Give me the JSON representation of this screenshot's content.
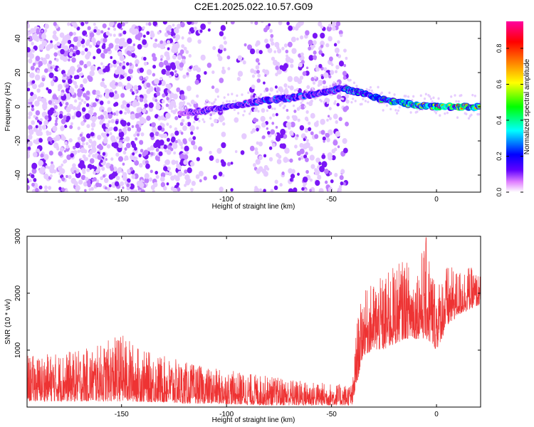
{
  "title": "C2E1.2025.022.10.57.G09",
  "chart_data": [
    {
      "type": "heatmap",
      "name": "spectrogram",
      "xlabel": "Height of straight line (km)",
      "ylabel": "Frequency (Hz)",
      "xlim": [
        -195,
        21
      ],
      "ylim": [
        -50,
        50
      ],
      "xticks": [
        -150,
        -100,
        -50,
        0
      ],
      "yticks": [
        -40,
        -20,
        0,
        20,
        40
      ],
      "colorbar": {
        "label": "Normalized spectral amplitude",
        "range": [
          0,
          0.95
        ],
        "ticks": [
          "0.0",
          "0.2",
          "0.4",
          "0.6",
          "0.8"
        ],
        "colormap": [
          "#ffffff",
          "#ff00ff",
          "#6000ff",
          "#0000ff",
          "#00ffff",
          "#00ff00",
          "#ffff00",
          "#ff8000",
          "#ff0000",
          "#ff00a0"
        ]
      },
      "noise_region": {
        "x": [
          -195,
          -42
        ],
        "fmin": -50,
        "fmax": 50
      },
      "noise_gaps_km": [
        [
          -112,
          -104
        ],
        [
          -101,
          -88
        ]
      ],
      "signal_trace": {
        "x": [
          -122,
          -110,
          -100,
          -90,
          -80,
          -70,
          -60,
          -50,
          -45,
          -40,
          -35,
          -30,
          -25,
          -20,
          -10,
          0,
          10,
          21
        ],
        "freq_hz": [
          -4,
          -2,
          0,
          2,
          4,
          5,
          7,
          9,
          11,
          9,
          8,
          6,
          4,
          3,
          1,
          0,
          0,
          0
        ],
        "peak_amplitude": [
          0.15,
          0.25,
          0.3,
          0.3,
          0.35,
          0.35,
          0.3,
          0.35,
          0.4,
          0.45,
          0.4,
          0.45,
          0.55,
          0.6,
          0.7,
          0.8,
          0.9,
          0.7
        ]
      }
    },
    {
      "type": "line",
      "name": "snr",
      "xlabel": "Height of straight line (km)",
      "ylabel": "SNR (10 * v/v)",
      "xlim": [
        -195,
        21
      ],
      "ylim": [
        0,
        3000
      ],
      "xticks": [
        -150,
        -100,
        -50,
        0
      ],
      "yticks": [
        1000,
        2000,
        3000
      ],
      "line_color": "#ee3333",
      "envelope": {
        "x": [
          -195,
          -170,
          -160,
          -150,
          -140,
          -130,
          -120,
          -110,
          -100,
          -90,
          -80,
          -70,
          -60,
          -50,
          -45,
          -40,
          -38,
          -35,
          -30,
          -25,
          -20,
          -15,
          -10,
          -5,
          0,
          5,
          10,
          15,
          21
        ],
        "base": [
          100,
          100,
          100,
          100,
          90,
          80,
          60,
          60,
          50,
          40,
          30,
          30,
          30,
          30,
          30,
          30,
          400,
          900,
          1000,
          1000,
          1100,
          1200,
          1200,
          1200,
          1000,
          1400,
          1600,
          1700,
          1800
        ],
        "peak": [
          900,
          1000,
          1100,
          1300,
          1000,
          900,
          800,
          700,
          650,
          600,
          550,
          500,
          450,
          420,
          400,
          420,
          1500,
          2000,
          2200,
          2300,
          2500,
          2600,
          2400,
          3000,
          2200,
          2500,
          2400,
          2500,
          2300
        ]
      }
    }
  ]
}
